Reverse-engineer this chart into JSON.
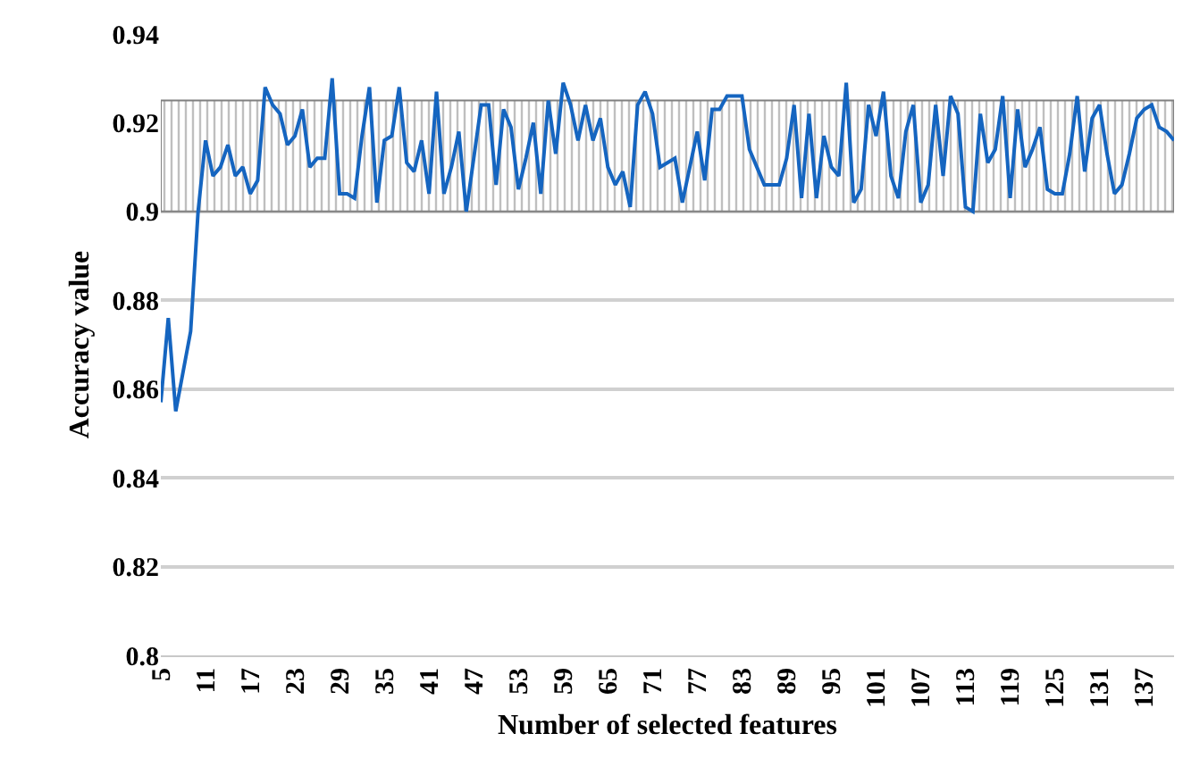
{
  "chart_data": {
    "type": "line",
    "xlabel": "Number of selected features",
    "ylabel": "Accuracy value",
    "x": [
      5,
      6,
      7,
      8,
      9,
      10,
      11,
      12,
      13,
      14,
      15,
      16,
      17,
      18,
      19,
      20,
      21,
      22,
      23,
      24,
      25,
      26,
      27,
      28,
      29,
      30,
      31,
      32,
      33,
      34,
      35,
      36,
      37,
      38,
      39,
      40,
      41,
      42,
      43,
      44,
      45,
      46,
      47,
      48,
      49,
      50,
      51,
      52,
      53,
      54,
      55,
      56,
      57,
      58,
      59,
      60,
      61,
      62,
      63,
      64,
      65,
      66,
      67,
      68,
      69,
      70,
      71,
      72,
      73,
      74,
      75,
      76,
      77,
      78,
      79,
      80,
      81,
      82,
      83,
      84,
      85,
      86,
      87,
      88,
      89,
      90,
      91,
      92,
      93,
      94,
      95,
      96,
      97,
      98,
      99,
      100,
      101,
      102,
      103,
      104,
      105,
      106,
      107,
      108,
      109,
      110,
      111,
      112,
      113,
      114,
      115,
      116,
      117,
      118,
      119,
      120,
      121,
      122,
      123,
      124,
      125,
      126,
      127,
      128,
      129,
      130,
      131,
      132,
      133,
      134,
      135,
      136,
      137,
      138,
      139,
      140,
      141
    ],
    "series": [
      {
        "color": "#1565c0",
        "values": [
          0.857,
          0.876,
          0.855,
          0.864,
          0.873,
          0.9,
          0.916,
          0.908,
          0.91,
          0.915,
          0.908,
          0.91,
          0.904,
          0.907,
          0.928,
          0.924,
          0.922,
          0.915,
          0.917,
          0.923,
          0.91,
          0.912,
          0.912,
          0.93,
          0.904,
          0.904,
          0.903,
          0.917,
          0.928,
          0.902,
          0.916,
          0.917,
          0.928,
          0.911,
          0.909,
          0.916,
          0.904,
          0.927,
          0.904,
          0.91,
          0.918,
          0.9,
          0.912,
          0.924,
          0.924,
          0.906,
          0.923,
          0.919,
          0.905,
          0.912,
          0.92,
          0.904,
          0.925,
          0.913,
          0.929,
          0.924,
          0.916,
          0.924,
          0.916,
          0.921,
          0.91,
          0.906,
          0.909,
          0.901,
          0.924,
          0.927,
          0.922,
          0.91,
          0.911,
          0.912,
          0.902,
          0.91,
          0.918,
          0.907,
          0.923,
          0.923,
          0.926,
          0.926,
          0.926,
          0.914,
          0.91,
          0.906,
          0.906,
          0.906,
          0.912,
          0.924,
          0.903,
          0.922,
          0.903,
          0.917,
          0.91,
          0.908,
          0.929,
          0.902,
          0.905,
          0.924,
          0.917,
          0.927,
          0.908,
          0.903,
          0.918,
          0.924,
          0.902,
          0.906,
          0.924,
          0.908,
          0.926,
          0.922,
          0.901,
          0.9,
          0.922,
          0.911,
          0.914,
          0.926,
          0.903,
          0.923,
          0.91,
          0.914,
          0.919,
          0.905,
          0.904,
          0.904,
          0.913,
          0.926,
          0.909,
          0.921,
          0.924,
          0.913,
          0.904,
          0.906,
          0.913,
          0.921,
          0.923,
          0.924,
          0.919,
          0.918,
          0.916
        ]
      }
    ],
    "xlim": [
      5,
      141
    ],
    "xticks": [
      5,
      11,
      17,
      23,
      29,
      35,
      41,
      47,
      53,
      59,
      65,
      71,
      77,
      83,
      89,
      95,
      101,
      107,
      113,
      119,
      125,
      131,
      137
    ],
    "ylim": [
      0.8,
      0.94
    ],
    "yticks": [
      0.8,
      0.82,
      0.84,
      0.86,
      0.88,
      0.9,
      0.92,
      0.94
    ],
    "bands": [
      {
        "axis": "y",
        "from": 0.9,
        "to": 0.925,
        "color": "#808080"
      }
    ],
    "grid": "y",
    "marker": "none",
    "line_style": "solid"
  }
}
